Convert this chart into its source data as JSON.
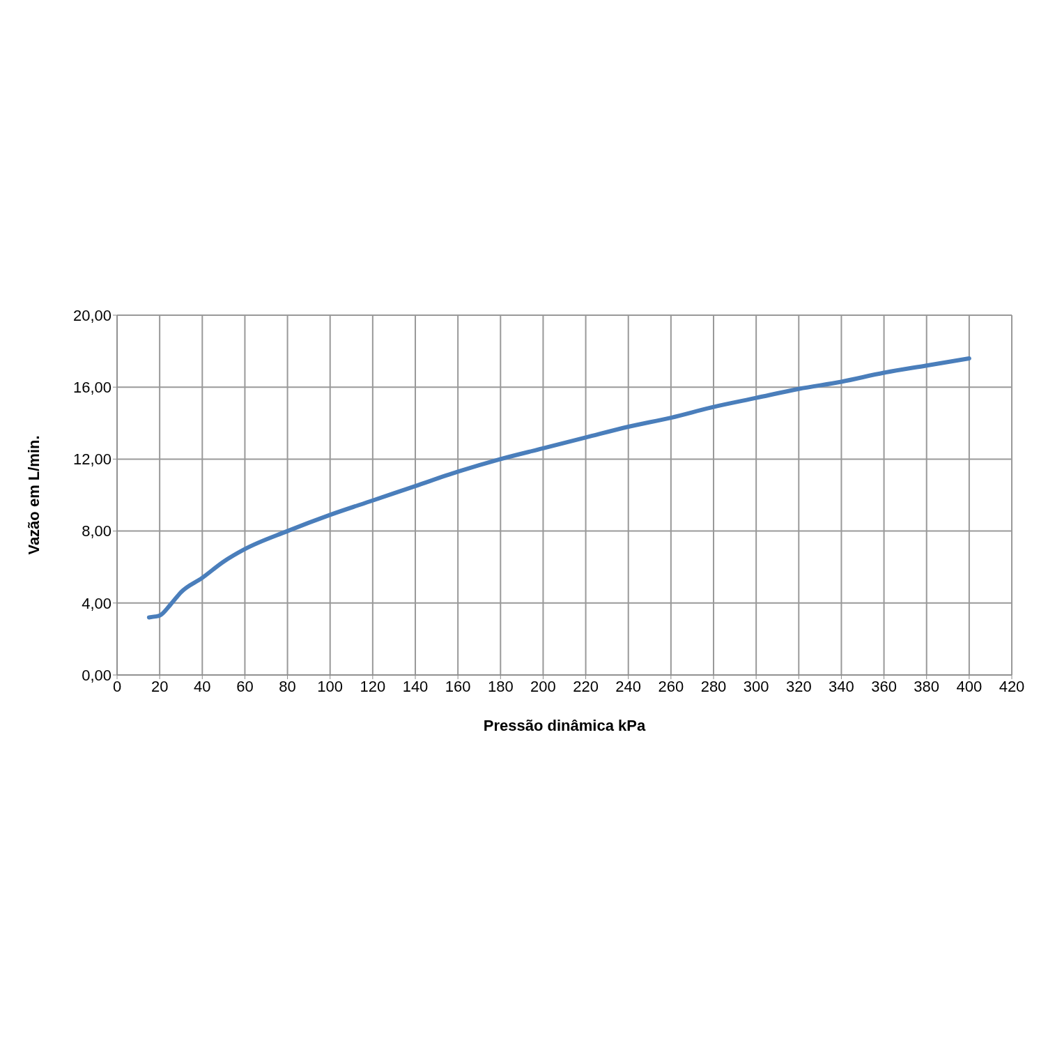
{
  "chart_data": {
    "type": "line",
    "xlabel": "Pressão dinâmica kPa",
    "ylabel": "Vazão em L/min.",
    "xlim": [
      0,
      420
    ],
    "xticks": [
      0,
      20,
      40,
      60,
      80,
      100,
      120,
      140,
      160,
      180,
      200,
      220,
      240,
      260,
      280,
      300,
      320,
      340,
      360,
      380,
      400,
      420
    ],
    "ylim": [
      0,
      20
    ],
    "yticks": [
      {
        "value": 0,
        "label": "0,00"
      },
      {
        "value": 4,
        "label": "4,00"
      },
      {
        "value": 8,
        "label": "8,00"
      },
      {
        "value": 12,
        "label": "12,00"
      },
      {
        "value": 16,
        "label": "16,00"
      },
      {
        "value": 20,
        "label": "20,00"
      }
    ],
    "grid": true,
    "legend": false,
    "marker": "none",
    "line_style": "solid",
    "series": [
      {
        "color": "#4a7ebb",
        "x": [
          15,
          18,
          20,
          25,
          30,
          40,
          50,
          60,
          80,
          100,
          120,
          140,
          160,
          180,
          200,
          220,
          240,
          260,
          280,
          300,
          320,
          340,
          360,
          380,
          400
        ],
        "values": [
          3.2,
          3.25,
          3.3,
          3.9,
          4.6,
          5.4,
          6.3,
          7.0,
          8.0,
          8.9,
          9.7,
          10.5,
          11.3,
          12.0,
          12.6,
          13.2,
          13.8,
          14.3,
          14.9,
          15.4,
          15.9,
          16.3,
          16.8,
          17.2,
          17.6
        ]
      }
    ]
  }
}
